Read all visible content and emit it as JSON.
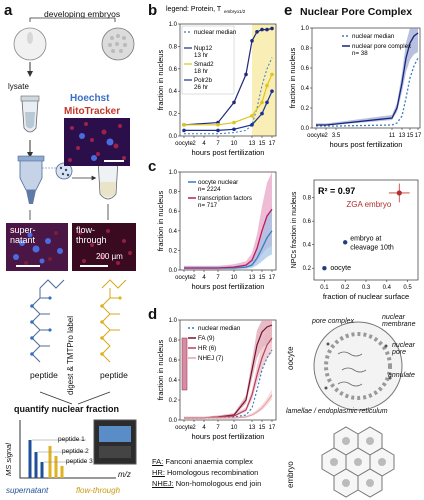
{
  "panels": {
    "a": "a",
    "b": "b",
    "c": "c",
    "d": "d",
    "e": "e"
  },
  "panel_a": {
    "developing_embryos": "developing embryos",
    "dots": "• • •",
    "lysate": "lysate",
    "hoechst": "Hoechst",
    "mitotracker": "MitoTracker",
    "supernatant": "super-\nnatant",
    "supernatant_l1": "super-",
    "supernatant_l2": "natant",
    "flowthrough_l1": "flow-",
    "flowthrough_l2": "through",
    "scale": "200 µm",
    "digest_label": "digest & TMTPro label",
    "peptide_left": "peptide",
    "peptide_right": "peptide",
    "quantify": "quantify nuclear fraction",
    "ms_signal": "MS signal",
    "mz": "m/z",
    "peptide1": "peptide 1",
    "peptide2": "peptide 2",
    "peptide3": "peptide 3",
    "supernatant_bottom": "supernatant",
    "flowthrough_bottom": "flow-through"
  },
  "panel_b": {
    "legend_title": "legend: Protein, T",
    "legend_sub": "embryo1/2",
    "legend": [
      "nuclear median",
      "Nup12, 13 hr",
      "Smad2, 18 hr",
      "Polr2b, 26 hr"
    ],
    "ylabel": "fraction in nucleus",
    "xlabel": "hours post fertilization",
    "yticks": [
      "0.0",
      "0.2",
      "0.4",
      "0.6",
      "0.8",
      "1.0"
    ],
    "xticks": [
      "oocyte",
      "2",
      "4",
      "7",
      "10",
      "13",
      "15",
      "17"
    ],
    "colors": {
      "median": "#3a7bbf",
      "nup": "#1f2a7a",
      "smad": "#e0c419",
      "polr": "#1b2f8f"
    }
  },
  "panel_c": {
    "legend": [
      "oocyte nuclear n= 2224",
      "transcription factors n= 717"
    ],
    "ylabel": "fraction in nucleus",
    "xlabel": "hours post fertilization",
    "yticks": [
      "0.0",
      "0.2",
      "0.4",
      "0.6",
      "0.8",
      "1.0"
    ],
    "xticks": [
      "oocyte",
      "2",
      "4",
      "7",
      "10",
      "13",
      "15",
      "17"
    ]
  },
  "panel_d": {
    "legend": [
      "nuclear median",
      "FA (9)",
      "HR (6)",
      "NHEJ (7)"
    ],
    "ylabel": "fraction in nucleus",
    "xlabel": "hours post fertilization",
    "yticks": [
      "0.0",
      "0.2",
      "0.4",
      "0.6",
      "0.8",
      "1.0"
    ],
    "xticks": [
      "oocyte",
      "2",
      "4",
      "7",
      "10",
      "13",
      "15",
      "17"
    ],
    "abbrev": [
      {
        "key": "FA:",
        "text": "Fanconi anaemia complex"
      },
      {
        "key": "HR:",
        "text": "Homologous recombination"
      },
      {
        "key": "NHEJ:",
        "text": "Non-homologous end join"
      }
    ]
  },
  "panel_e": {
    "title": "Nuclear Pore Complex",
    "legend": [
      "nuclear median",
      "nuclear pore complex n= 38"
    ],
    "ylabel": "fraction in nucleus",
    "xlabel": "hours post fertilization",
    "yticks": [
      "0.0",
      "0.2",
      "0.4",
      "0.6",
      "0.8",
      "1.0"
    ],
    "xticks": [
      "oocyte",
      "2",
      "3.5",
      "11",
      "13",
      "15",
      "17"
    ],
    "scatter": {
      "r2": "R² = 0.97",
      "zga": "ZGA embryo",
      "cleavage": "embryo at cleavage 10th",
      "oocyte": "oocyte",
      "ylabel": "NPCs fraction in nucleus",
      "xlabel": "fraction of nuclear surface",
      "yticks": [
        "0.2",
        "0.4",
        "0.6",
        "0.8"
      ],
      "xticks": [
        "0.1",
        "0.2",
        "0.3",
        "0.4",
        "0.5"
      ]
    },
    "diagram": {
      "pore_complex": "pore complex",
      "nuclear_membrane": "nuclear membrane",
      "nuclear_pore": "nuclear pore",
      "annulate": "annulate",
      "lamellae": "lamellae / endoplasmic reticulum",
      "oocyte": "oocyte",
      "embryo": "embryo"
    }
  },
  "chart_data": [
    {
      "type": "scatter",
      "panel": "b",
      "xlabel": "hours post fertilization",
      "ylabel": "fraction in nucleus",
      "ylim": [
        0,
        1
      ],
      "x_ticks": [
        "oocyte",
        "2",
        "4",
        "7",
        "10",
        "13",
        "15",
        "17"
      ],
      "series": [
        {
          "name": "nuclear median",
          "x": [
            0,
            2,
            4,
            7,
            10,
            12,
            13,
            14,
            15,
            16,
            17
          ],
          "y": [
            0.02,
            0.02,
            0.02,
            0.02,
            0.03,
            0.05,
            0.1,
            0.25,
            0.45,
            0.6,
            0.7
          ]
        },
        {
          "name": "Nup12, 13 hr",
          "x": [
            0,
            7,
            10,
            12,
            13,
            14,
            15,
            16,
            17
          ],
          "y": [
            0.1,
            0.12,
            0.3,
            0.55,
            0.85,
            0.93,
            0.95,
            0.95,
            0.96
          ]
        },
        {
          "name": "Smad2, 18 hr",
          "x": [
            0,
            7,
            10,
            13,
            15,
            16,
            17
          ],
          "y": [
            0.1,
            0.1,
            0.12,
            0.18,
            0.3,
            0.45,
            0.55
          ]
        },
        {
          "name": "Polr2b, 26 hr",
          "x": [
            0,
            7,
            10,
            13,
            15,
            16,
            17
          ],
          "y": [
            0.05,
            0.05,
            0.06,
            0.1,
            0.2,
            0.3,
            0.4
          ]
        }
      ]
    },
    {
      "type": "area",
      "panel": "c",
      "xlabel": "hours post fertilization",
      "ylabel": "fraction in nucleus",
      "ylim": [
        0,
        1
      ],
      "series": [
        {
          "name": "oocyte nuclear n= 2224",
          "x": [
            0,
            2,
            4,
            7,
            10,
            12,
            13,
            14,
            15,
            16,
            17
          ],
          "y": [
            0.02,
            0.02,
            0.02,
            0.02,
            0.02,
            0.03,
            0.05,
            0.12,
            0.22,
            0.33,
            0.4
          ]
        },
        {
          "name": "transcription factors n= 717",
          "x": [
            0,
            2,
            4,
            7,
            10,
            12,
            13,
            14,
            15,
            16,
            17
          ],
          "y": [
            0.02,
            0.02,
            0.02,
            0.02,
            0.03,
            0.05,
            0.1,
            0.22,
            0.4,
            0.55,
            0.62
          ]
        }
      ]
    },
    {
      "type": "line",
      "panel": "d",
      "xlabel": "hours post fertilization",
      "ylabel": "fraction in nucleus",
      "ylim": [
        0,
        1
      ],
      "series": [
        {
          "name": "nuclear median",
          "x": [
            0,
            2,
            4,
            7,
            10,
            12,
            13,
            14,
            15,
            16,
            17
          ],
          "y": [
            0.02,
            0.02,
            0.02,
            0.02,
            0.03,
            0.05,
            0.12,
            0.3,
            0.5,
            0.62,
            0.7
          ]
        },
        {
          "name": "FA (9)",
          "x": [
            0,
            2,
            4,
            7,
            10,
            12,
            13,
            14,
            15,
            16,
            17
          ],
          "y": [
            0.02,
            0.02,
            0.02,
            0.03,
            0.05,
            0.2,
            0.5,
            0.75,
            0.88,
            0.93,
            0.95
          ]
        },
        {
          "name": "HR (6)",
          "x": [
            0,
            2,
            4,
            7,
            10,
            12,
            13,
            14,
            15,
            16,
            17
          ],
          "y": [
            0.02,
            0.02,
            0.02,
            0.03,
            0.04,
            0.1,
            0.25,
            0.45,
            0.62,
            0.75,
            0.82
          ]
        },
        {
          "name": "NHEJ (7)",
          "x": [
            0,
            2,
            4,
            7,
            10,
            12,
            13,
            14,
            15,
            16,
            17
          ],
          "y": [
            0.02,
            0.02,
            0.02,
            0.02,
            0.02,
            0.03,
            0.05,
            0.08,
            0.12,
            0.18,
            0.25
          ]
        }
      ]
    },
    {
      "type": "line",
      "panel": "e-top",
      "xlabel": "hours post fertilization",
      "ylabel": "fraction in nucleus",
      "ylim": [
        0,
        1
      ],
      "series": [
        {
          "name": "nuclear median",
          "x": [
            0,
            2,
            3.5,
            11,
            12,
            13,
            14,
            15,
            16,
            17
          ],
          "y": [
            0.02,
            0.02,
            0.02,
            0.03,
            0.05,
            0.12,
            0.3,
            0.5,
            0.62,
            0.7
          ]
        },
        {
          "name": "nuclear pore complex n= 38",
          "x": [
            0,
            2,
            3.5,
            11,
            12,
            13,
            14,
            15,
            16,
            17
          ],
          "y": [
            0.03,
            0.03,
            0.04,
            0.1,
            0.2,
            0.45,
            0.7,
            0.85,
            0.92,
            0.95
          ]
        }
      ]
    },
    {
      "type": "scatter",
      "panel": "e-middle",
      "xlabel": "fraction of nuclear surface",
      "ylabel": "NPCs fraction in nucleus",
      "xlim": [
        0.05,
        0.55
      ],
      "ylim": [
        0.1,
        0.95
      ],
      "points": [
        {
          "label": "oocyte",
          "x": 0.1,
          "y": 0.2
        },
        {
          "label": "embryo at cleavage 10th",
          "x": 0.2,
          "y": 0.42
        },
        {
          "label": "ZGA embryo",
          "x": 0.46,
          "y": 0.84
        }
      ],
      "annotation": "R² = 0.97"
    }
  ]
}
